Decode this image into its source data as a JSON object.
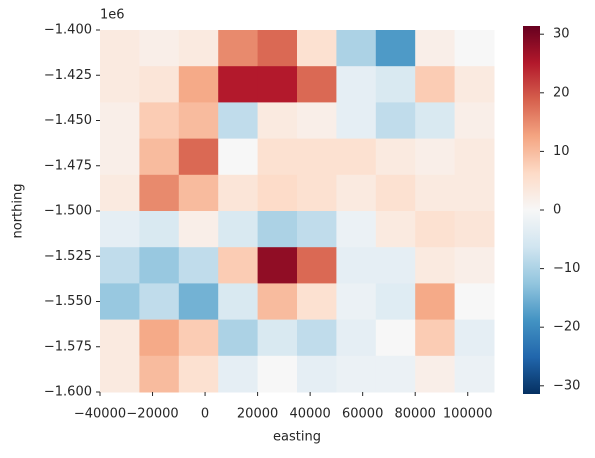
{
  "chart_data": {
    "type": "heatmap",
    "xlabel": "easting",
    "ylabel": "northing",
    "y_offset_text": "1e6",
    "x": [
      -32500,
      -17500,
      -2500,
      12500,
      27500,
      42500,
      57500,
      72500,
      87500,
      102500
    ],
    "y": [
      -1410000,
      -1430000,
      -1450000,
      -1470000,
      -1490000,
      -1510000,
      -1530000,
      -1550000,
      -1570000,
      -1590000
    ],
    "values": [
      [
        3,
        2,
        3,
        15,
        18,
        5,
        -10,
        -18,
        2,
        0
      ],
      [
        3,
        4,
        12,
        25,
        25,
        18,
        -3,
        -5,
        8,
        3
      ],
      [
        2,
        8,
        10,
        -8,
        3,
        2,
        -3,
        -8,
        -5,
        2
      ],
      [
        2,
        10,
        18,
        0,
        5,
        5,
        5,
        3,
        2,
        3
      ],
      [
        3,
        15,
        10,
        4,
        6,
        5,
        3,
        5,
        3,
        3
      ],
      [
        -3,
        -5,
        2,
        -5,
        -10,
        -8,
        -2,
        3,
        5,
        4
      ],
      [
        -8,
        -12,
        -8,
        8,
        28,
        18,
        -3,
        -3,
        3,
        2
      ],
      [
        -12,
        -8,
        -15,
        -5,
        10,
        5,
        -2,
        -4,
        12,
        0
      ],
      [
        3,
        12,
        8,
        -10,
        -5,
        -8,
        -3,
        0,
        8,
        -3
      ],
      [
        3,
        10,
        5,
        -3,
        0,
        -3,
        -2,
        -2,
        2,
        -2
      ]
    ],
    "xlim": [
      -40000,
      110000
    ],
    "ylim": [
      -1600000,
      -1400000
    ],
    "xticks": [
      {
        "value": -40000,
        "label": "−40000"
      },
      {
        "value": -20000,
        "label": "−20000"
      },
      0,
      20000,
      40000,
      60000,
      80000,
      100000
    ],
    "yticks": [
      {
        "value": -1400000,
        "label": "−1.400"
      },
      {
        "value": -1425000,
        "label": "−1.425"
      },
      {
        "value": -1450000,
        "label": "−1.450"
      },
      {
        "value": -1475000,
        "label": "−1.475"
      },
      {
        "value": -1500000,
        "label": "−1.500"
      },
      {
        "value": -1525000,
        "label": "−1.525"
      },
      {
        "value": -1550000,
        "label": "−1.550"
      },
      {
        "value": -1575000,
        "label": "−1.575"
      },
      {
        "value": -1600000,
        "label": "−1.600"
      }
    ],
    "clim": [
      -31.4,
      31.4
    ],
    "cticks": [
      {
        "value": -30,
        "label": "−30"
      },
      {
        "value": -20,
        "label": "−20"
      },
      {
        "value": -10,
        "label": "−10"
      },
      0,
      10,
      20,
      30
    ],
    "colormap": [
      "#053061",
      "#2166ac",
      "#4393c3",
      "#92c5de",
      "#d1e5f0",
      "#f7f7f7",
      "#fddbc7",
      "#f4a582",
      "#d6604d",
      "#b2182b",
      "#67001f"
    ]
  }
}
